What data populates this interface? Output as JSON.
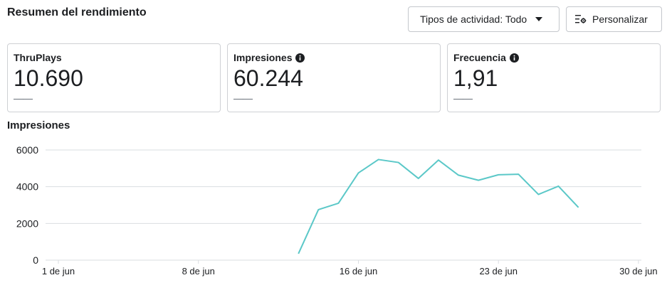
{
  "header": {
    "title": "Resumen del rendimiento",
    "activity_button": "Tipos de actividad: Todo",
    "customize_button": "Personalizar"
  },
  "cards": [
    {
      "label": "ThruPlays",
      "value": "10.690",
      "delta": "——",
      "info": false
    },
    {
      "label": "Impresiones",
      "value": "60.244",
      "delta": "——",
      "info": true
    },
    {
      "label": "Frecuencia",
      "value": "1,91",
      "delta": "——",
      "info": true
    }
  ],
  "chart_section": {
    "title": "Impresiones"
  },
  "colors": {
    "line": "#5bc8c8",
    "grid": "#dadde1",
    "border": "#ced0d4"
  },
  "chart_data": {
    "type": "line",
    "title": "Impresiones",
    "x_ticks": [
      "1 de jun",
      "8 de jun",
      "16 de jun",
      "23 de jun",
      "30 de jun"
    ],
    "y_ticks": [
      0,
      2000,
      4000,
      6000
    ],
    "ylim": [
      0,
      6000
    ],
    "xlim": [
      "1 de jun",
      "30 de jun"
    ],
    "grid": true,
    "series": [
      {
        "x": [
          "13 de jun",
          "14 de jun",
          "15 de jun",
          "16 de jun",
          "17 de jun",
          "18 de jun",
          "19 de jun",
          "20 de jun",
          "21 de jun",
          "22 de jun",
          "23 de jun",
          "24 de jun",
          "25 de jun",
          "26 de jun",
          "27 de jun"
        ],
        "day": [
          13,
          14,
          15,
          16,
          17,
          18,
          19,
          20,
          21,
          22,
          23,
          24,
          25,
          26,
          27
        ],
        "values": [
          350,
          2750,
          3100,
          4750,
          5480,
          5320,
          4450,
          5450,
          4630,
          4350,
          4650,
          4680,
          3580,
          4030,
          2870
        ]
      }
    ]
  }
}
